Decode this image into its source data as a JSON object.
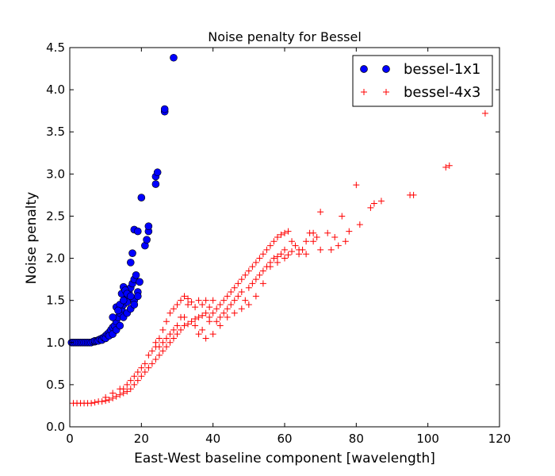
{
  "chart_data": {
    "type": "scatter",
    "title": "Noise penalty for Bessel",
    "xlabel": "East-West baseline component [wavelength]",
    "ylabel": "Noise penalty",
    "xlim": [
      0,
      120
    ],
    "ylim": [
      0,
      4.5
    ],
    "xticks": [
      0,
      20,
      40,
      60,
      80,
      100,
      120
    ],
    "yticks": [
      0.0,
      0.5,
      1.0,
      1.5,
      2.0,
      2.5,
      3.0,
      3.5,
      4.0,
      4.5
    ],
    "xtick_labels": [
      "0",
      "20",
      "40",
      "60",
      "80",
      "100",
      "120"
    ],
    "ytick_labels": [
      "0.0",
      "0.5",
      "1.0",
      "1.5",
      "2.0",
      "2.5",
      "3.0",
      "3.5",
      "4.0",
      "4.5"
    ],
    "grid": false,
    "legend_position": "top-right",
    "series": [
      {
        "name": "bessel-1x1",
        "marker": "circle",
        "color": "#0000ff",
        "edge_color": "#000000",
        "points": [
          [
            0.5,
            1.0
          ],
          [
            1,
            1.0
          ],
          [
            1.5,
            1.0
          ],
          [
            2,
            1.0
          ],
          [
            2.5,
            1.0
          ],
          [
            3,
            1.0
          ],
          [
            3.5,
            1.0
          ],
          [
            4,
            1.0
          ],
          [
            4.5,
            1.0
          ],
          [
            5,
            1.0
          ],
          [
            5.5,
            1.0
          ],
          [
            6,
            1.0
          ],
          [
            6.5,
            1.01
          ],
          [
            7,
            1.01
          ],
          [
            7,
            1.02
          ],
          [
            7.5,
            1.02
          ],
          [
            8,
            1.03
          ],
          [
            8,
            1.02
          ],
          [
            8.5,
            1.04
          ],
          [
            9,
            1.05
          ],
          [
            9,
            1.03
          ],
          [
            9.5,
            1.06
          ],
          [
            10,
            1.08
          ],
          [
            10,
            1.05
          ],
          [
            10.5,
            1.1
          ],
          [
            11,
            1.12
          ],
          [
            11,
            1.08
          ],
          [
            11.5,
            1.15
          ],
          [
            12,
            1.18
          ],
          [
            12,
            1.1
          ],
          [
            12.5,
            1.2
          ],
          [
            13,
            1.25
          ],
          [
            13,
            1.15
          ],
          [
            13.5,
            1.3
          ],
          [
            14,
            1.35
          ],
          [
            14,
            1.2
          ],
          [
            14.5,
            1.4
          ],
          [
            15,
            1.45
          ],
          [
            15,
            1.3
          ],
          [
            15.5,
            1.5
          ],
          [
            16,
            1.55
          ],
          [
            16,
            1.35
          ],
          [
            16.5,
            1.6
          ],
          [
            17,
            1.65
          ],
          [
            17,
            1.4
          ],
          [
            17.5,
            1.7
          ],
          [
            18,
            1.75
          ],
          [
            18,
            1.5
          ],
          [
            18.5,
            1.8
          ],
          [
            19,
            1.6
          ],
          [
            19.5,
            1.72
          ],
          [
            13,
            1.42
          ],
          [
            14,
            1.45
          ],
          [
            14.5,
            1.58
          ],
          [
            15,
            1.66
          ],
          [
            15.5,
            1.62
          ],
          [
            16,
            1.48
          ],
          [
            17,
            1.95
          ],
          [
            17.5,
            2.06
          ],
          [
            18,
            2.34
          ],
          [
            19,
            2.32
          ],
          [
            20,
            2.72
          ],
          [
            21,
            2.15
          ],
          [
            21.5,
            2.22
          ],
          [
            22,
            2.32
          ],
          [
            22,
            2.38
          ],
          [
            24,
            2.88
          ],
          [
            24,
            2.97
          ],
          [
            24.5,
            3.02
          ],
          [
            26.5,
            3.74
          ],
          [
            26.5,
            3.77
          ],
          [
            29,
            4.38
          ],
          [
            12,
            1.3
          ],
          [
            13.5,
            1.38
          ],
          [
            15,
            1.5
          ],
          [
            16,
            1.58
          ],
          [
            17,
            1.55
          ],
          [
            18,
            1.45
          ],
          [
            19,
            1.55
          ]
        ]
      },
      {
        "name": "bessel-4x3",
        "marker": "plus",
        "color": "#ff0000",
        "points": [
          [
            1,
            0.28
          ],
          [
            2,
            0.28
          ],
          [
            3,
            0.28
          ],
          [
            4,
            0.28
          ],
          [
            5,
            0.28
          ],
          [
            6,
            0.28
          ],
          [
            7,
            0.29
          ],
          [
            8,
            0.3
          ],
          [
            9,
            0.3
          ],
          [
            10,
            0.31
          ],
          [
            11,
            0.32
          ],
          [
            12,
            0.34
          ],
          [
            13,
            0.36
          ],
          [
            14,
            0.38
          ],
          [
            15,
            0.4
          ],
          [
            15,
            0.45
          ],
          [
            16,
            0.42
          ],
          [
            16,
            0.5
          ],
          [
            17,
            0.45
          ],
          [
            17,
            0.55
          ],
          [
            18,
            0.5
          ],
          [
            18,
            0.6
          ],
          [
            19,
            0.55
          ],
          [
            19,
            0.65
          ],
          [
            20,
            0.6
          ],
          [
            20,
            0.7
          ],
          [
            21,
            0.65
          ],
          [
            21,
            0.75
          ],
          [
            22,
            0.7
          ],
          [
            22,
            0.85
          ],
          [
            23,
            0.75
          ],
          [
            23,
            0.9
          ],
          [
            24,
            0.8
          ],
          [
            24,
            0.95
          ],
          [
            25,
            0.85
          ],
          [
            25,
            1.05
          ],
          [
            26,
            0.9
          ],
          [
            26,
            1.15
          ],
          [
            27,
            0.95
          ],
          [
            27,
            1.25
          ],
          [
            28,
            1.0
          ],
          [
            28,
            1.35
          ],
          [
            29,
            1.05
          ],
          [
            29,
            1.4
          ],
          [
            30,
            1.1
          ],
          [
            30,
            1.45
          ],
          [
            31,
            1.15
          ],
          [
            31,
            1.5
          ],
          [
            32,
            1.2
          ],
          [
            32,
            1.55
          ],
          [
            33,
            1.22
          ],
          [
            33,
            1.52
          ],
          [
            34,
            1.25
          ],
          [
            34,
            1.48
          ],
          [
            35,
            1.28
          ],
          [
            35,
            1.42
          ],
          [
            36,
            1.3
          ],
          [
            36,
            1.5
          ],
          [
            37,
            1.32
          ],
          [
            37,
            1.45
          ],
          [
            38,
            1.35
          ],
          [
            38,
            1.5
          ],
          [
            39,
            1.3
          ],
          [
            39,
            1.42
          ],
          [
            40,
            1.35
          ],
          [
            40,
            1.5
          ],
          [
            41,
            1.4
          ],
          [
            41,
            1.25
          ],
          [
            42,
            1.45
          ],
          [
            42,
            1.3
          ],
          [
            43,
            1.5
          ],
          [
            43,
            1.35
          ],
          [
            44,
            1.55
          ],
          [
            44,
            1.4
          ],
          [
            45,
            1.6
          ],
          [
            45,
            1.45
          ],
          [
            46,
            1.65
          ],
          [
            46,
            1.5
          ],
          [
            47,
            1.7
          ],
          [
            47,
            1.55
          ],
          [
            48,
            1.75
          ],
          [
            48,
            1.6
          ],
          [
            49,
            1.8
          ],
          [
            49,
            1.5
          ],
          [
            50,
            1.85
          ],
          [
            50,
            1.65
          ],
          [
            51,
            1.9
          ],
          [
            51,
            1.7
          ],
          [
            52,
            1.95
          ],
          [
            52,
            1.75
          ],
          [
            53,
            2.0
          ],
          [
            53,
            1.8
          ],
          [
            54,
            2.05
          ],
          [
            54,
            1.85
          ],
          [
            55,
            2.1
          ],
          [
            55,
            1.9
          ],
          [
            56,
            2.15
          ],
          [
            56,
            1.95
          ],
          [
            57,
            2.2
          ],
          [
            57,
            2.0
          ],
          [
            58,
            2.25
          ],
          [
            58,
            2.02
          ],
          [
            59,
            2.28
          ],
          [
            59,
            2.05
          ],
          [
            60,
            2.3
          ],
          [
            60,
            2.1
          ],
          [
            61,
            2.32
          ],
          [
            61,
            2.04
          ],
          [
            62,
            2.2
          ],
          [
            63,
            2.15
          ],
          [
            64,
            2.05
          ],
          [
            65,
            2.1
          ],
          [
            66,
            2.05
          ],
          [
            67,
            2.3
          ],
          [
            68,
            2.2
          ],
          [
            69,
            2.25
          ],
          [
            70,
            2.1
          ],
          [
            70,
            2.55
          ],
          [
            72,
            2.3
          ],
          [
            73,
            2.1
          ],
          [
            74,
            2.25
          ],
          [
            75,
            2.15
          ],
          [
            76,
            2.5
          ],
          [
            77,
            2.2
          ],
          [
            78,
            2.32
          ],
          [
            80,
            2.87
          ],
          [
            81,
            2.4
          ],
          [
            84,
            2.6
          ],
          [
            85,
            2.65
          ],
          [
            87,
            2.68
          ],
          [
            95,
            2.75
          ],
          [
            96,
            2.75
          ],
          [
            105,
            3.08
          ],
          [
            106,
            3.1
          ],
          [
            116,
            3.72
          ],
          [
            10,
            0.35
          ],
          [
            12,
            0.4
          ],
          [
            14,
            0.45
          ],
          [
            26,
            1.0
          ],
          [
            28,
            1.1
          ],
          [
            30,
            1.2
          ],
          [
            32,
            1.3
          ],
          [
            36,
            1.1
          ],
          [
            38,
            1.05
          ],
          [
            40,
            1.1
          ],
          [
            42,
            1.2
          ],
          [
            44,
            1.3
          ],
          [
            46,
            1.35
          ],
          [
            48,
            1.4
          ],
          [
            50,
            1.45
          ],
          [
            52,
            1.55
          ],
          [
            54,
            1.7
          ],
          [
            56,
            1.9
          ],
          [
            58,
            1.95
          ],
          [
            60,
            2.0
          ],
          [
            62,
            2.08
          ],
          [
            64,
            2.1
          ],
          [
            66,
            2.2
          ],
          [
            68,
            2.3
          ],
          [
            24,
            1.0
          ],
          [
            25,
            0.95
          ],
          [
            27,
            1.05
          ],
          [
            29,
            1.15
          ],
          [
            31,
            1.3
          ],
          [
            33,
            1.45
          ],
          [
            35,
            1.2
          ],
          [
            37,
            1.15
          ],
          [
            39,
            1.25
          ]
        ]
      }
    ]
  }
}
